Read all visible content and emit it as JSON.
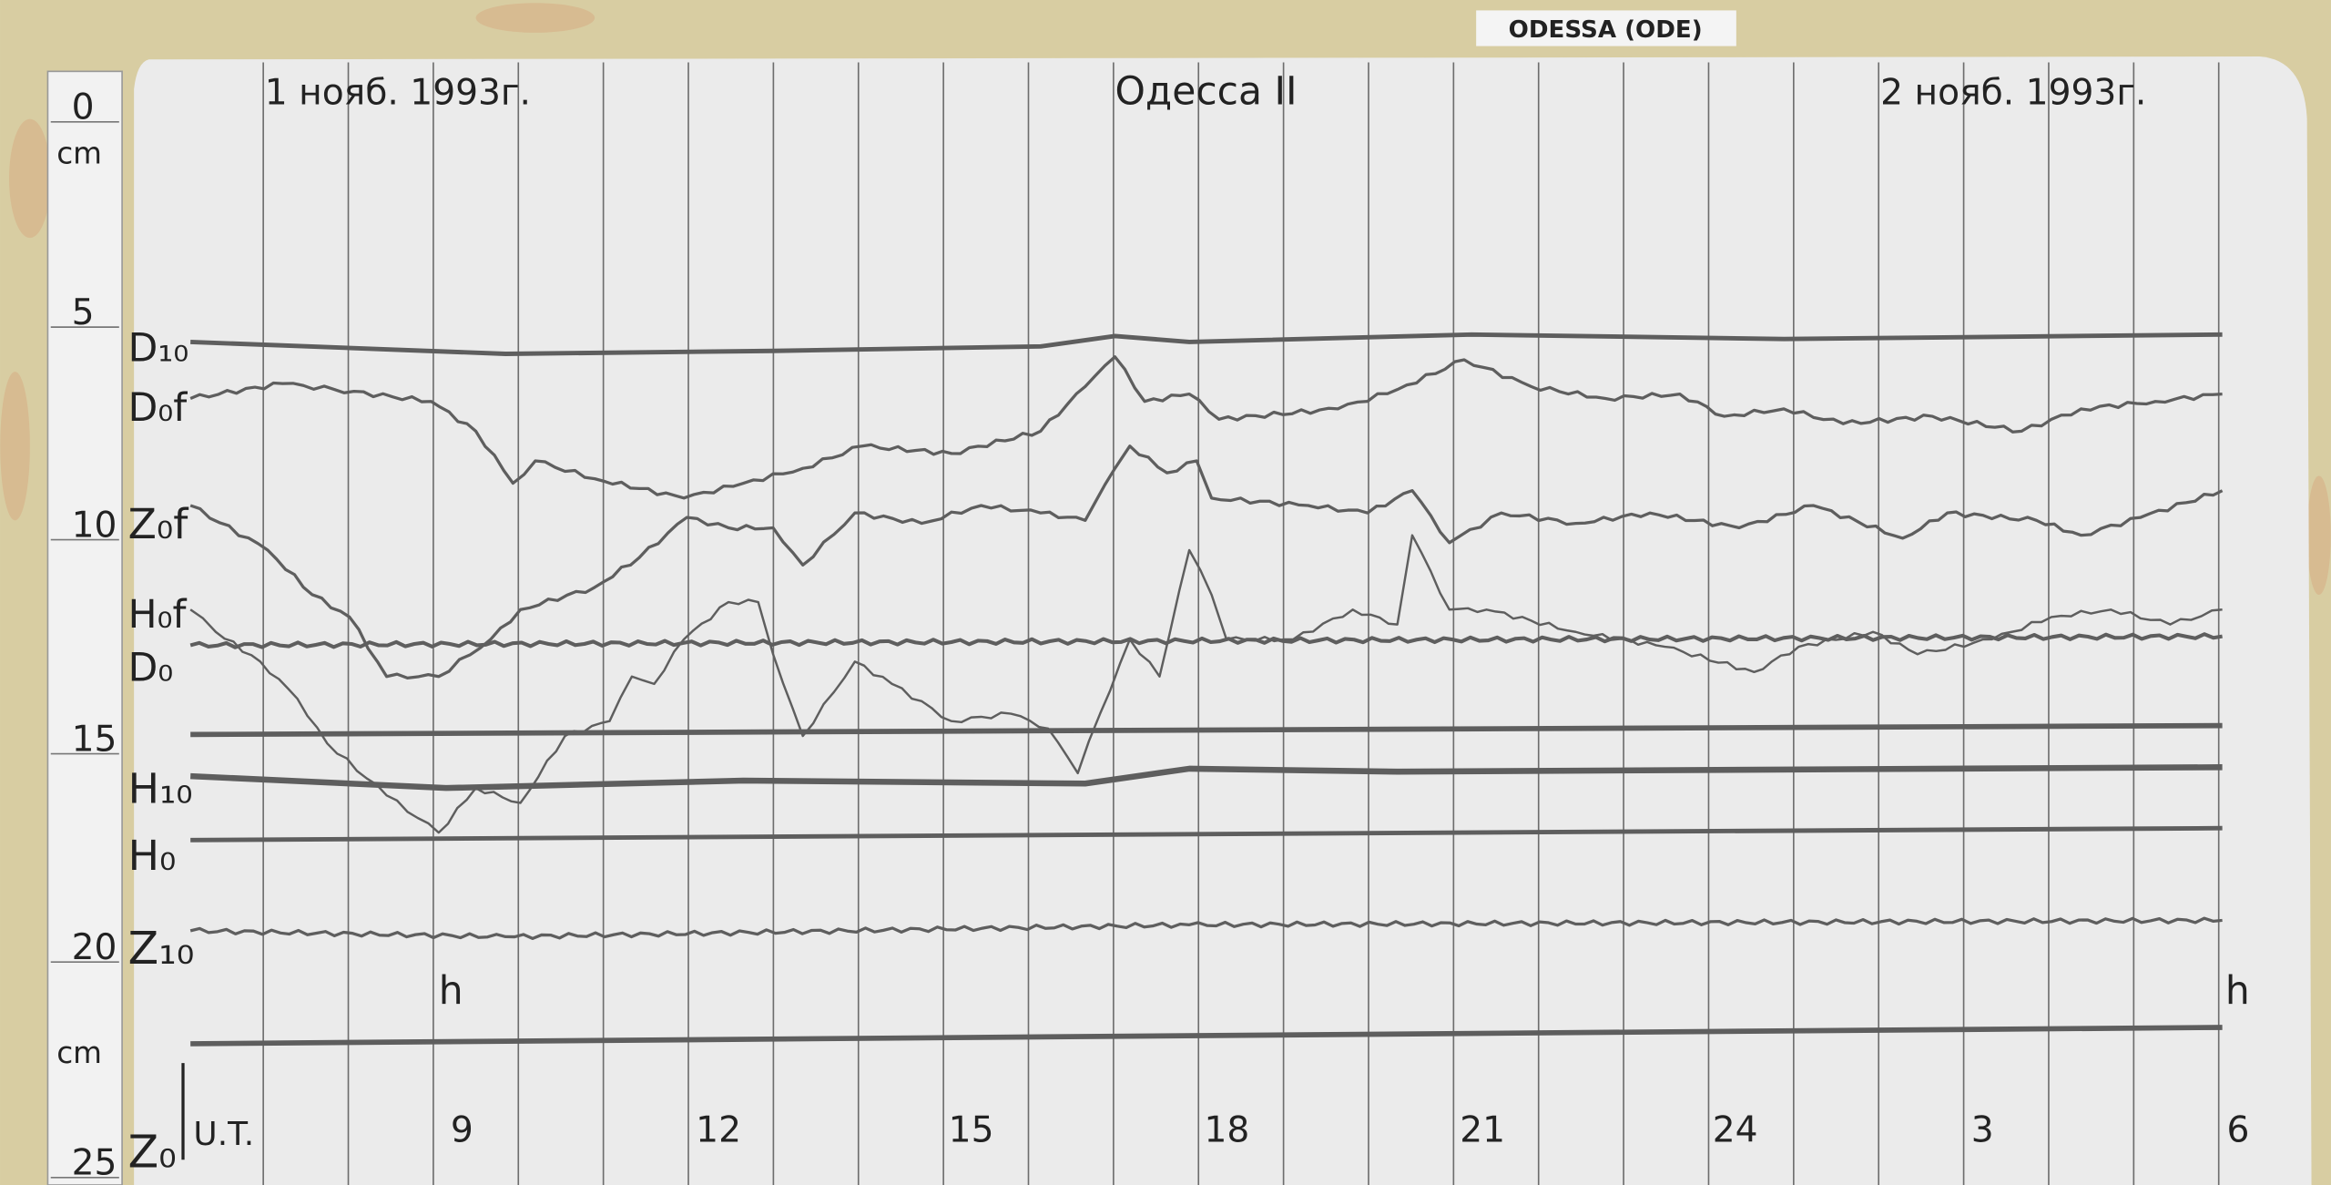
{
  "station_label": "ODESSA (ODE)",
  "chart": {
    "title": "Одесса II",
    "date_left": "1 нояб. 1993г.",
    "date_right": "2 нояб. 1993г.",
    "scale_unit_top": "cm",
    "scale_unit_bottom": "cm",
    "scale_ticks": [
      "0",
      "5",
      "10",
      "15",
      "20",
      "25"
    ],
    "hour_marker_left": "h",
    "hour_marker_right": "h",
    "time_axis_label": "U.T.",
    "hour_labels": [
      "9",
      "12",
      "15",
      "18",
      "21",
      "24",
      "3",
      "6"
    ],
    "trace_labels": {
      "D10": "D₁₀",
      "D0f": "D₀f",
      "Z0f": "Z₀f",
      "H0f": "H₀f",
      "D0": "D₀",
      "H10": "H₁₀",
      "H0": "H₀",
      "Z10": "Z₁₀",
      "Z0": "Z₀"
    }
  },
  "colors": {
    "paper": "#ebebeb",
    "wall": "#d9cfa6",
    "ink": "#222222",
    "trace": "#5e5e5e"
  }
}
